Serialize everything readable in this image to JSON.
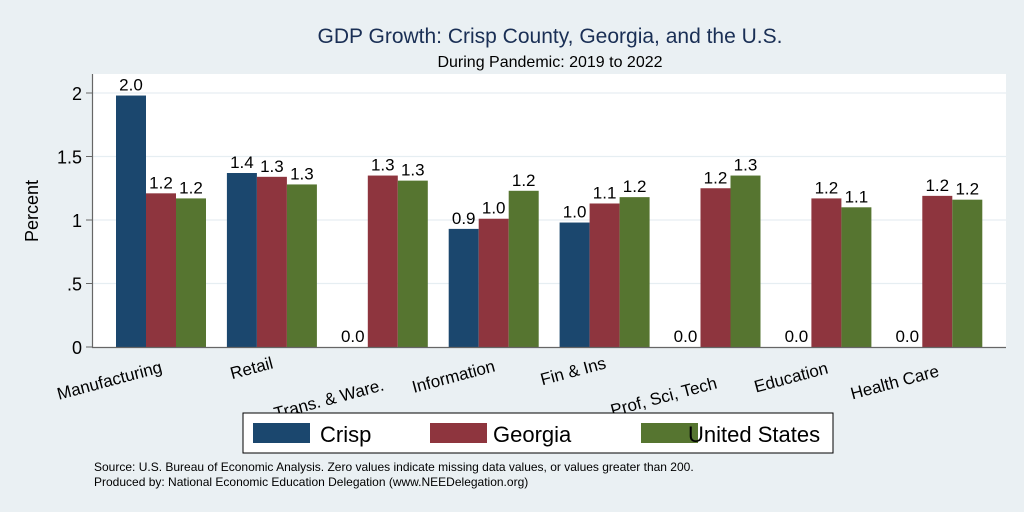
{
  "chart_data": {
    "type": "bar",
    "title": "GDP Growth: Crisp County, Georgia, and the U.S.",
    "subtitle": "During Pandemic: 2019 to 2022",
    "xlabel": "",
    "ylabel": "Percent",
    "ylim": [
      0,
      2.15
    ],
    "yticks": [
      0,
      0.5,
      1,
      1.5,
      2
    ],
    "ytick_labels": [
      "0",
      ".5",
      "1",
      "1.5",
      "2"
    ],
    "grid": true,
    "categories": [
      "Manufacturing",
      "Retail",
      "Trans. & Ware.",
      "Information",
      "Fin & Ins",
      "Prof, Sci, Tech",
      "Education",
      "Health Care"
    ],
    "series": [
      {
        "name": "Crisp",
        "color": "#1b476e",
        "values": [
          1.98,
          1.37,
          0.0,
          0.93,
          0.98,
          0.0,
          0.0,
          0.0
        ],
        "labels": [
          "2.0",
          "1.4",
          "0.0",
          "0.9",
          "1.0",
          "0.0",
          "0.0",
          "0.0"
        ]
      },
      {
        "name": "Georgia",
        "color": "#8e353e",
        "values": [
          1.21,
          1.34,
          1.35,
          1.01,
          1.13,
          1.25,
          1.17,
          1.19
        ],
        "labels": [
          "1.2",
          "1.3",
          "1.3",
          "1.0",
          "1.1",
          "1.2",
          "1.2",
          "1.2"
        ]
      },
      {
        "name": "United States",
        "color": "#567530",
        "values": [
          1.17,
          1.28,
          1.31,
          1.23,
          1.18,
          1.35,
          1.1,
          1.16
        ],
        "labels": [
          "1.2",
          "1.3",
          "1.3",
          "1.2",
          "1.2",
          "1.3",
          "1.1",
          "1.2"
        ]
      }
    ],
    "legend": {
      "placement": "bottom",
      "entries": [
        "Crisp",
        "Georgia",
        "United States"
      ]
    },
    "notes": [
      "Source: U.S. Bureau of Economic Analysis. Zero values indicate missing data values, or values greater than 200.",
      "Produced by: National Economic Education Delegation (www.NEEDelegation.org)"
    ]
  }
}
